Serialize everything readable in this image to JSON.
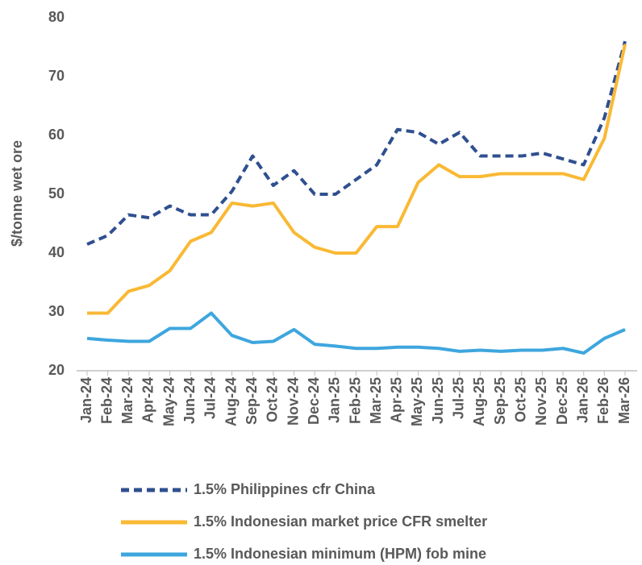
{
  "chart_data": {
    "type": "line",
    "y_label": "$/tonne wet ore",
    "categories": [
      "Jan-24",
      "Feb-24",
      "Mar-24",
      "Apr-24",
      "May-24",
      "Jun-24",
      "Jul-24",
      "Aug-24",
      "Sep-24",
      "Oct-24",
      "Nov-24",
      "Dec-24",
      "Jan-25",
      "Feb-25",
      "Mar-25",
      "Apr-25",
      "May-25",
      "Jun-25",
      "Jul-25",
      "Aug-25",
      "Sep-25",
      "Oct-25",
      "Nov-25",
      "Dec-25",
      "Jan-26",
      "Feb-26",
      "Mar-26"
    ],
    "series": [
      {
        "name": "1.5% Philippines cfr China",
        "color": "#2f4f8f",
        "dashed": true,
        "values": [
          41.5,
          43,
          46.5,
          46,
          48,
          46.5,
          46.5,
          50.5,
          56.5,
          51.5,
          54,
          50,
          50,
          52.5,
          55,
          61,
          60.5,
          58.5,
          60.5,
          56.5,
          56.5,
          56.5,
          57,
          56,
          55,
          63,
          76
        ]
      },
      {
        "name": "1.5% Indonesian market price CFR smelter",
        "color": "#f9b934",
        "dashed": false,
        "values": [
          29.8,
          29.8,
          33.5,
          34.5,
          37,
          42,
          43.5,
          48.5,
          48,
          48.5,
          43.5,
          41,
          40,
          40,
          44.5,
          44.5,
          52,
          55,
          53,
          53,
          53.5,
          53.5,
          53.5,
          53.5,
          52.5,
          59.5,
          75.5
        ]
      },
      {
        "name": "1.5% Indonesian minimum (HPM) fob mine",
        "color": "#3ea6de",
        "dashed": false,
        "values": [
          25.5,
          25.2,
          25,
          25,
          27.2,
          27.2,
          29.8,
          26,
          24.8,
          25,
          27,
          24.5,
          24.2,
          23.8,
          23.8,
          24,
          24,
          23.8,
          23.3,
          23.5,
          23.3,
          23.5,
          23.5,
          23.8,
          23,
          25.5,
          27
        ]
      }
    ],
    "ylim": [
      20,
      80
    ],
    "yticks": [
      20,
      30,
      40,
      50,
      60,
      70,
      80
    ],
    "grid": false
  }
}
